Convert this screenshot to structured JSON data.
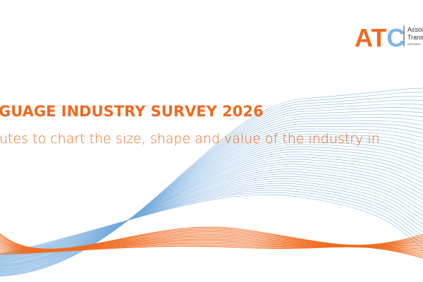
{
  "banner": {
    "title": "GUAGE INDUSTRY SURVEY 2026",
    "subtitle": "utes to chart the size, shape and value of the industry in"
  },
  "logo": {
    "letters": [
      "A",
      "T",
      "C"
    ],
    "lines": [
      "Assoc",
      "Transl",
      "DEFINING"
    ]
  }
}
